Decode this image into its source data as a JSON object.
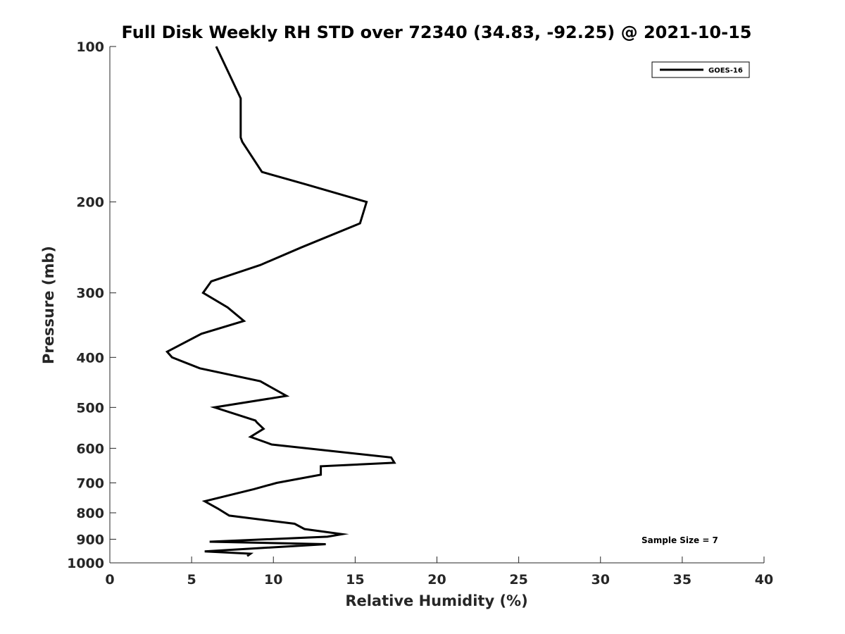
{
  "chart_data": {
    "type": "line",
    "title": "Full Disk Weekly RH STD over 72340 (34.83, -92.25) @ 2021-10-15",
    "xlabel": "Relative Humidity (%)",
    "ylabel": "Pressure (mb)",
    "xlim": [
      0,
      40
    ],
    "ylim": [
      100,
      1000
    ],
    "yscale": "log",
    "y_reversed": true,
    "xticks": [
      0,
      5,
      10,
      15,
      20,
      25,
      30,
      35,
      40
    ],
    "yticks": [
      100,
      200,
      300,
      400,
      500,
      600,
      700,
      800,
      900,
      1000
    ],
    "grid": false,
    "legend_position": "top-right",
    "annotation": "Sample Size = 7",
    "series": [
      {
        "name": "GOES-16",
        "color": "#000000",
        "x": [
          6.5,
          8.0,
          8.0,
          8.1,
          9.3,
          12.0,
          15.7,
          15.3,
          11.7,
          9.2,
          6.2,
          5.7,
          7.2,
          8.2,
          5.6,
          3.5,
          3.8,
          5.5,
          9.2,
          10.8,
          6.4,
          8.9,
          9.0,
          9.4,
          8.6,
          9.9,
          17.2,
          17.4,
          12.9,
          12.9,
          10.2,
          8.8,
          5.8,
          6.6,
          7.3,
          11.3,
          11.9,
          14.2,
          13.3,
          6.1,
          13.2,
          5.8,
          8.6,
          8.4
        ],
        "y": [
          100,
          126,
          150,
          153,
          175,
          185,
          200,
          220,
          245,
          265,
          285,
          300,
          320,
          340,
          360,
          390,
          400,
          420,
          445,
          475,
          500,
          530,
          535,
          550,
          570,
          590,
          625,
          640,
          650,
          675,
          700,
          720,
          760,
          785,
          810,
          840,
          860,
          880,
          890,
          910,
          920,
          950,
          960,
          970
        ]
      }
    ]
  }
}
